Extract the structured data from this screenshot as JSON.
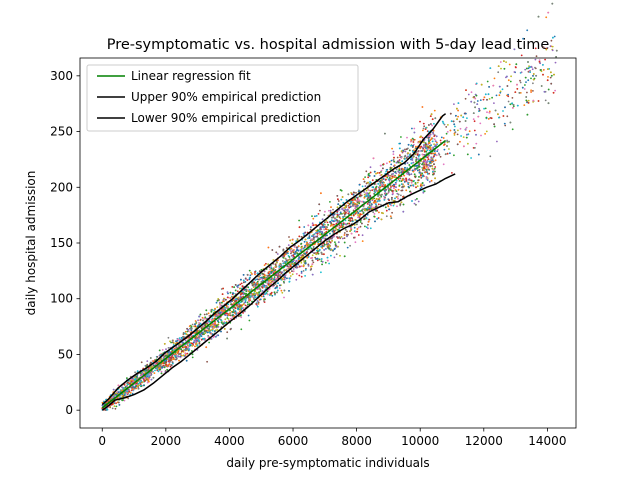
{
  "chart_data": {
    "type": "scatter",
    "title": "Pre-symptomatic vs. hospital admission with 5-day lead time",
    "xlabel": "daily pre-symptomatic individuals",
    "ylabel": "daily hospital admission",
    "xlim": [
      -700,
      14900
    ],
    "ylim": [
      -16,
      316
    ],
    "xticks": [
      0,
      2000,
      4000,
      6000,
      8000,
      10000,
      12000,
      14000
    ],
    "yticks": [
      0,
      50,
      100,
      150,
      200,
      250,
      300
    ],
    "grid": false,
    "legend_position": "top-left",
    "scatter_cloud": {
      "x_range": [
        0,
        14300
      ],
      "relation": "y ≈ 0.0222·x + 2",
      "point_colors": [
        "#1f77b4",
        "#ff7f0e",
        "#2ca02c",
        "#d62728",
        "#9467bd",
        "#8c564b",
        "#e377c2",
        "#7f7f7f",
        "#bcbd22",
        "#17becf"
      ]
    },
    "series": [
      {
        "name": "Linear regression fit",
        "color": "#008000",
        "points": [
          [
            0,
            2
          ],
          [
            10800,
            242
          ]
        ]
      },
      {
        "name": "Upper 90% empirical prediction",
        "color": "#000000",
        "points": [
          [
            0,
            5
          ],
          [
            200,
            10
          ],
          [
            500,
            20
          ],
          [
            800,
            27
          ],
          [
            1100,
            33
          ],
          [
            1400,
            38
          ],
          [
            1700,
            44
          ],
          [
            2000,
            52
          ],
          [
            2300,
            58
          ],
          [
            2600,
            64
          ],
          [
            2900,
            71
          ],
          [
            3200,
            78
          ],
          [
            3500,
            86
          ],
          [
            3800,
            93
          ],
          [
            4100,
            100
          ],
          [
            4400,
            108
          ],
          [
            4700,
            116
          ],
          [
            5000,
            124
          ],
          [
            5300,
            131
          ],
          [
            5600,
            138
          ],
          [
            5900,
            146
          ],
          [
            6200,
            152
          ],
          [
            6500,
            159
          ],
          [
            6800,
            166
          ],
          [
            7100,
            173
          ],
          [
            7400,
            180
          ],
          [
            7700,
            187
          ],
          [
            8000,
            193
          ],
          [
            8300,
            199
          ],
          [
            8600,
            205
          ],
          [
            8900,
            211
          ],
          [
            9200,
            217
          ],
          [
            9500,
            222
          ],
          [
            9800,
            230
          ],
          [
            10100,
            243
          ],
          [
            10400,
            252
          ],
          [
            10700,
            264
          ],
          [
            10800,
            266
          ]
        ]
      },
      {
        "name": "Lower 90% empirical prediction",
        "color": "#000000",
        "points": [
          [
            0,
            0
          ],
          [
            200,
            4
          ],
          [
            400,
            9
          ],
          [
            700,
            11
          ],
          [
            1000,
            14
          ],
          [
            1300,
            18
          ],
          [
            1600,
            24
          ],
          [
            1900,
            31
          ],
          [
            2200,
            38
          ],
          [
            2500,
            44
          ],
          [
            2800,
            51
          ],
          [
            3100,
            58
          ],
          [
            3400,
            65
          ],
          [
            3700,
            72
          ],
          [
            4000,
            79
          ],
          [
            4300,
            86
          ],
          [
            4600,
            93
          ],
          [
            4900,
            101
          ],
          [
            5200,
            109
          ],
          [
            5500,
            116
          ],
          [
            5800,
            124
          ],
          [
            6100,
            131
          ],
          [
            6400,
            138
          ],
          [
            6700,
            145
          ],
          [
            7000,
            152
          ],
          [
            7300,
            158
          ],
          [
            7600,
            163
          ],
          [
            7900,
            167
          ],
          [
            8100,
            171
          ],
          [
            8400,
            178
          ],
          [
            8700,
            182
          ],
          [
            9000,
            186
          ],
          [
            9300,
            187
          ],
          [
            9600,
            192
          ],
          [
            9900,
            196
          ],
          [
            10200,
            200
          ],
          [
            10500,
            203
          ],
          [
            10800,
            208
          ],
          [
            11100,
            212
          ]
        ]
      }
    ]
  }
}
